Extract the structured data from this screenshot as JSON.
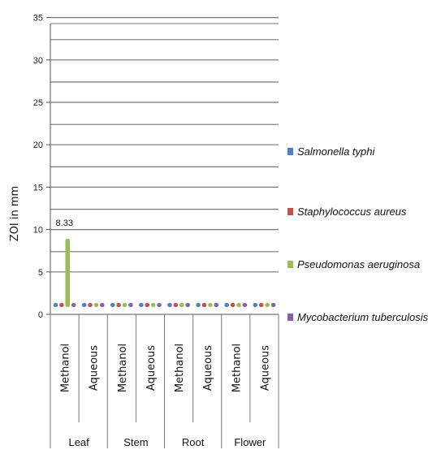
{
  "chart_data": {
    "type": "bar",
    "ylabel": "ZOI in mm",
    "ylim": [
      0,
      35
    ],
    "y_ticks": [
      0,
      5,
      10,
      15,
      20,
      25,
      30,
      35
    ],
    "groups": [
      "Leaf",
      "Stem",
      "Root",
      "Flower"
    ],
    "categories": [
      "Methanol",
      "Aqueous",
      "Methanol",
      "Aqueous",
      "Methanol",
      "Aqueous",
      "Methanol",
      "Aqueous"
    ],
    "series": [
      {
        "name": "Salmonella typhi",
        "color": "#4f81bd",
        "values": [
          0,
          0,
          0,
          0,
          0,
          0,
          0,
          0
        ]
      },
      {
        "name": "Staphylococcus aureus",
        "color": "#c0504d",
        "values": [
          0,
          0,
          0,
          0,
          0,
          0,
          0,
          0
        ]
      },
      {
        "name": "Pseudomonas aeruginosa",
        "color": "#9bbb59",
        "values": [
          8.33,
          0,
          0,
          0,
          0,
          0,
          0,
          0
        ]
      },
      {
        "name": "Mycobacterium tuberculosis",
        "color": "#8064a2",
        "values": [
          0,
          0,
          0,
          0,
          0,
          0,
          0,
          0
        ]
      }
    ],
    "data_labels": [
      {
        "category_index": 0,
        "series_index": 2,
        "text": "8.33"
      }
    ],
    "legend_position": "right",
    "grid": true
  }
}
